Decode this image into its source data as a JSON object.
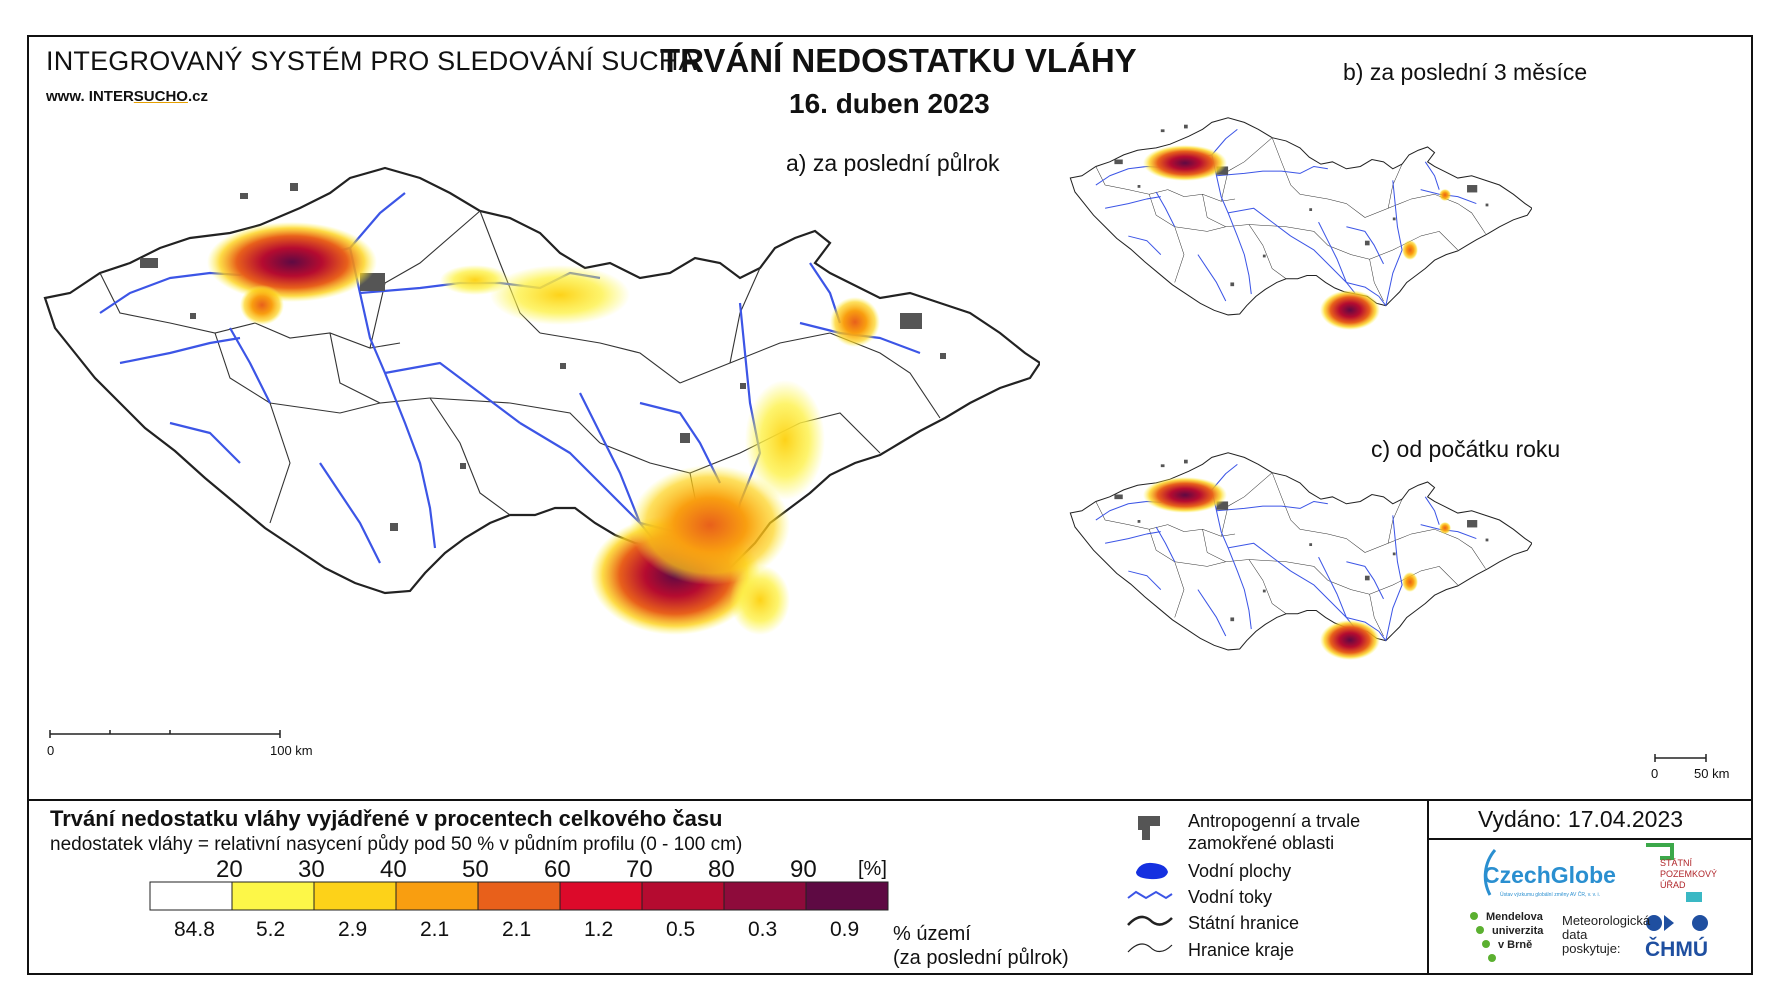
{
  "header": {
    "system_title": "INTEGROVANÝ SYSTÉM PRO SLEDOVÁNÍ SUCHA",
    "website_pre": "www. INTER",
    "website_hl": "SUCHO",
    "website_post": ".cz",
    "title": "TRVÁNÍ NEDOSTATKU VLÁHY",
    "date": "16. duben 2023"
  },
  "maps": {
    "a_label": "a) za poslední půlrok",
    "b_label": "b) za poslední 3 měsíce",
    "c_label": "c) od počátku roku",
    "scale_main": {
      "zero": "0",
      "end": "100 km"
    },
    "scale_small": {
      "zero": "0",
      "end": "50 km"
    }
  },
  "legend": {
    "title": "Trvání nedostatku vláhy vyjádřené v procentech celkového času",
    "subtitle": "nedostatek vláhy = relativní nasycení půdy pod 50 % v půdním profilu (0 - 100 cm)",
    "thresholds": [
      "20",
      "30",
      "40",
      "50",
      "60",
      "70",
      "80",
      "90"
    ],
    "unit": "[%]",
    "classes": [
      {
        "color": "#ffffff",
        "percent": "84.8"
      },
      {
        "color": "#fdf748",
        "percent": "5.2"
      },
      {
        "color": "#fdd219",
        "percent": "2.9"
      },
      {
        "color": "#f99e10",
        "percent": "2.1"
      },
      {
        "color": "#e8601b",
        "percent": "2.1"
      },
      {
        "color": "#dc0a2a",
        "percent": "1.2"
      },
      {
        "color": "#b50b30",
        "percent": "0.5"
      },
      {
        "color": "#8e0b3b",
        "percent": "0.3"
      },
      {
        "color": "#5e0a43",
        "percent": "0.9"
      }
    ],
    "area_label_1": "% území",
    "area_label_2": "(za poslední půlrok)"
  },
  "map_legend": {
    "anthropogenic_1": "Antropogenní a trvale",
    "anthropogenic_2": "zamokřené oblasti",
    "water_bodies": "Vodní plochy",
    "water_courses": "Vodní toky",
    "state_border": "Státní hranice",
    "region_border": "Hranice kraje"
  },
  "info": {
    "issued": "Vydáno: 17.04.2023",
    "czechglobe": "CzechGlobe",
    "czechglobe_sub": "Ústav výzkumu globální změny AV ČR, v. v. i.",
    "mendel_1": "Mendelova",
    "mendel_2": "univerzita",
    "mendel_3": "v Brně",
    "met_1": "Meteorologická",
    "met_2": "data",
    "met_3": "poskytuje:",
    "chmu": "ČHMÚ",
    "spu_1": "STÁTNÍ",
    "spu_2": "POZEMKOVÝ",
    "spu_3": "ÚŘAD"
  }
}
